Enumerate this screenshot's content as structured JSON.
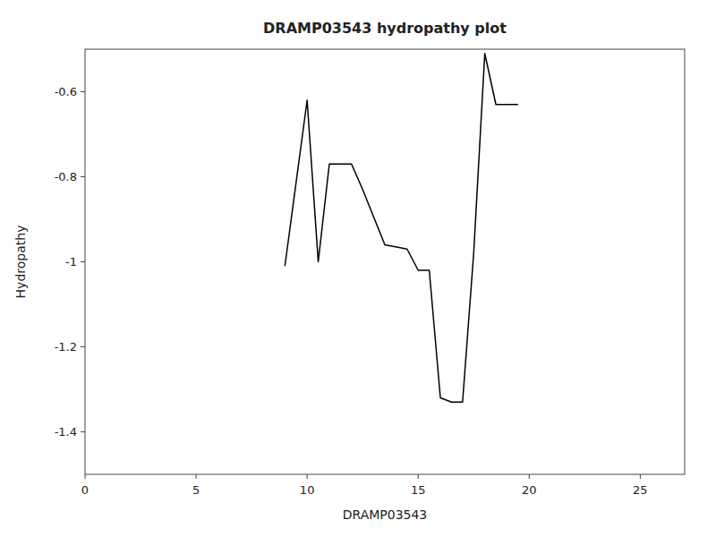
{
  "chart_data": {
    "type": "line",
    "title": "DRAMP03543 hydropathy plot",
    "xlabel": "DRAMP03543",
    "ylabel": "Hydropathy",
    "x": [
      9.0,
      10.0,
      10.5,
      11.0,
      12.0,
      12.5,
      13.5,
      14.5,
      15.0,
      15.5,
      16.0,
      16.5,
      17.0,
      17.5,
      18.0,
      18.5,
      19.0,
      19.5
    ],
    "values": [
      -1.01,
      -0.62,
      -1.0,
      -0.77,
      -0.77,
      -0.83,
      -0.96,
      -0.97,
      -1.02,
      -1.02,
      -1.32,
      -1.33,
      -1.33,
      -0.98,
      -0.51,
      -0.63,
      -0.63,
      -0.63
    ],
    "color": "#000000",
    "xlim": [
      0,
      27
    ],
    "ylim": [
      -1.5,
      -0.5
    ],
    "xticks": [
      0,
      5,
      10,
      15,
      20,
      25
    ],
    "yticks": [
      -1.4,
      -1.2,
      -1.0,
      -0.8,
      -0.6
    ],
    "grid": false
  }
}
